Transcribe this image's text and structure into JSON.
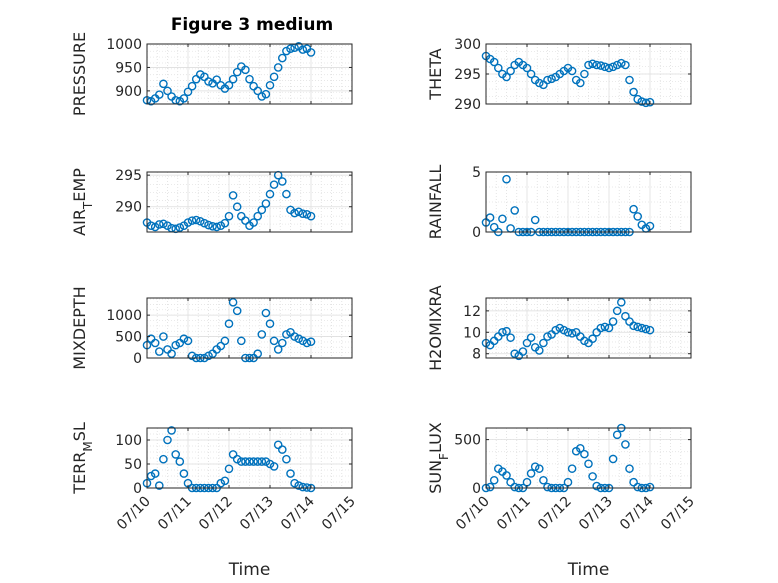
{
  "figure": {
    "title": "Figure 3 medium",
    "marker_color": "#0072BD",
    "x_tick_labels": [
      "07/10",
      "07/11",
      "07/12",
      "07/13",
      "07/14",
      "07/15"
    ],
    "x_label": "Time"
  },
  "chart_data": [
    {
      "type": "scatter",
      "ylabel": "PRESSURE",
      "title": "Figure 3 medium",
      "xlim": [
        0,
        5
      ],
      "ylim": [
        872,
        1000
      ],
      "yticks": [
        900,
        950,
        1000
      ],
      "grid": true,
      "series": [
        {
          "x": [
            0.0,
            0.1,
            0.2,
            0.3,
            0.4,
            0.5,
            0.6,
            0.7,
            0.8,
            0.9,
            1.0,
            1.1,
            1.2,
            1.3,
            1.4,
            1.5,
            1.6,
            1.7,
            1.8,
            1.9,
            2.0,
            2.1,
            2.2,
            2.3,
            2.4,
            2.5,
            2.6,
            2.7,
            2.8,
            2.9,
            3.0,
            3.1,
            3.2,
            3.3,
            3.4,
            3.5,
            3.6,
            3.7,
            3.8,
            3.9,
            4.0
          ],
          "values": [
            880,
            878,
            884,
            892,
            915,
            900,
            888,
            880,
            878,
            884,
            898,
            910,
            925,
            935,
            930,
            920,
            916,
            924,
            912,
            905,
            912,
            925,
            940,
            952,
            945,
            925,
            910,
            900,
            888,
            893,
            912,
            930,
            950,
            970,
            985,
            990,
            992,
            995,
            988,
            990,
            982
          ]
        }
      ]
    },
    {
      "type": "scatter",
      "ylabel": "THETA",
      "xlim": [
        0,
        5
      ],
      "ylim": [
        290,
        300
      ],
      "yticks": [
        290,
        295,
        300
      ],
      "grid": true,
      "series": [
        {
          "x": [
            0.0,
            0.1,
            0.2,
            0.3,
            0.4,
            0.5,
            0.6,
            0.7,
            0.8,
            0.9,
            1.0,
            1.1,
            1.2,
            1.3,
            1.4,
            1.5,
            1.6,
            1.7,
            1.8,
            1.9,
            2.0,
            2.1,
            2.2,
            2.3,
            2.4,
            2.5,
            2.6,
            2.7,
            2.8,
            2.9,
            3.0,
            3.1,
            3.2,
            3.3,
            3.4,
            3.5,
            3.6,
            3.7,
            3.8,
            3.9,
            4.0
          ],
          "values": [
            298.0,
            297.5,
            297.0,
            296.0,
            295.0,
            294.5,
            295.5,
            296.5,
            297.0,
            296.5,
            296.0,
            295.0,
            294.0,
            293.5,
            293.2,
            294.0,
            294.2,
            294.5,
            295.0,
            295.5,
            296.0,
            295.5,
            294.0,
            293.5,
            295.0,
            296.5,
            296.7,
            296.5,
            296.4,
            296.2,
            296.0,
            296.2,
            296.5,
            296.8,
            296.5,
            294.0,
            292.0,
            290.8,
            290.4,
            290.2,
            290.3
          ]
        }
      ]
    },
    {
      "type": "scatter",
      "ylabel": "AIR_TEMP",
      "xlim": [
        0,
        5
      ],
      "ylim": [
        286,
        295.5
      ],
      "yticks": [
        290,
        295
      ],
      "grid": true,
      "series": [
        {
          "x": [
            0.0,
            0.1,
            0.2,
            0.3,
            0.4,
            0.5,
            0.6,
            0.7,
            0.8,
            0.9,
            1.0,
            1.1,
            1.2,
            1.3,
            1.4,
            1.5,
            1.6,
            1.7,
            1.8,
            1.9,
            2.0,
            2.1,
            2.2,
            2.3,
            2.4,
            2.5,
            2.6,
            2.7,
            2.8,
            2.9,
            3.0,
            3.1,
            3.2,
            3.3,
            3.4,
            3.5,
            3.6,
            3.7,
            3.8,
            3.9,
            4.0
          ],
          "values": [
            287.5,
            287.0,
            286.8,
            287.2,
            287.3,
            287.0,
            286.6,
            286.5,
            286.7,
            287.0,
            287.5,
            287.8,
            287.9,
            287.7,
            287.4,
            287.1,
            286.9,
            286.8,
            287.0,
            287.4,
            288.5,
            291.8,
            290.0,
            288.5,
            287.8,
            287.0,
            287.5,
            288.5,
            289.5,
            290.5,
            292.0,
            293.5,
            295.0,
            294.0,
            292.0,
            289.5,
            289.0,
            289.2,
            288.9,
            288.8,
            288.5
          ]
        }
      ]
    },
    {
      "type": "scatter",
      "ylabel": "RAINFALL",
      "xlim": [
        0,
        5
      ],
      "ylim": [
        0,
        5
      ],
      "yticks": [
        0,
        5
      ],
      "grid": true,
      "series": [
        {
          "x": [
            0.0,
            0.1,
            0.2,
            0.3,
            0.4,
            0.5,
            0.6,
            0.7,
            0.8,
            0.9,
            1.0,
            1.1,
            1.2,
            1.3,
            1.4,
            1.5,
            1.6,
            1.7,
            1.8,
            1.9,
            2.0,
            2.1,
            2.2,
            2.3,
            2.4,
            2.5,
            2.6,
            2.7,
            2.8,
            2.9,
            3.0,
            3.1,
            3.2,
            3.3,
            3.4,
            3.5,
            3.6,
            3.7,
            3.8,
            3.9,
            4.0
          ],
          "values": [
            0.8,
            1.2,
            0.4,
            0.0,
            1.1,
            4.4,
            0.3,
            1.8,
            0.0,
            0.0,
            0.0,
            0.0,
            1.0,
            0.0,
            0.0,
            0.0,
            0.0,
            0.0,
            0.0,
            0.0,
            0.0,
            0.0,
            0.0,
            0.0,
            0.0,
            0.0,
            0.0,
            0.0,
            0.0,
            0.0,
            0.0,
            0.0,
            0.0,
            0.0,
            0.0,
            0.0,
            1.9,
            1.3,
            0.6,
            0.3,
            0.5
          ]
        }
      ]
    },
    {
      "type": "scatter",
      "ylabel": "MIXDEPTH",
      "xlim": [
        0,
        5
      ],
      "ylim": [
        0,
        1400
      ],
      "yticks": [
        0,
        500,
        1000
      ],
      "grid": true,
      "series": [
        {
          "x": [
            0.0,
            0.1,
            0.2,
            0.3,
            0.4,
            0.5,
            0.6,
            0.7,
            0.8,
            0.9,
            1.0,
            1.1,
            1.2,
            1.3,
            1.4,
            1.5,
            1.6,
            1.7,
            1.8,
            1.9,
            2.0,
            2.1,
            2.2,
            2.3,
            2.4,
            2.5,
            2.6,
            2.7,
            2.8,
            2.9,
            3.0,
            3.1,
            3.2,
            3.3,
            3.4,
            3.5,
            3.6,
            3.7,
            3.8,
            3.9,
            4.0
          ],
          "values": [
            300,
            450,
            350,
            150,
            500,
            200,
            100,
            300,
            350,
            450,
            400,
            50,
            0,
            0,
            0,
            50,
            100,
            200,
            280,
            400,
            800,
            1300,
            1100,
            400,
            0,
            0,
            0,
            100,
            550,
            1050,
            800,
            400,
            200,
            350,
            550,
            600,
            500,
            450,
            400,
            350,
            380
          ]
        }
      ]
    },
    {
      "type": "scatter",
      "ylabel": "H2OMIXRA",
      "xlim": [
        0,
        5
      ],
      "ylim": [
        7.6,
        13.2
      ],
      "yticks": [
        8,
        10,
        12
      ],
      "grid": true,
      "series": [
        {
          "x": [
            0.0,
            0.1,
            0.2,
            0.3,
            0.4,
            0.5,
            0.6,
            0.7,
            0.8,
            0.9,
            1.0,
            1.1,
            1.2,
            1.3,
            1.4,
            1.5,
            1.6,
            1.7,
            1.8,
            1.9,
            2.0,
            2.1,
            2.2,
            2.3,
            2.4,
            2.5,
            2.6,
            2.7,
            2.8,
            2.9,
            3.0,
            3.1,
            3.2,
            3.3,
            3.4,
            3.5,
            3.6,
            3.7,
            3.8,
            3.9,
            4.0
          ],
          "values": [
            9.0,
            8.8,
            9.2,
            9.6,
            10.0,
            10.1,
            9.5,
            8.0,
            7.8,
            8.2,
            9.0,
            9.5,
            8.6,
            8.3,
            9.0,
            9.6,
            9.8,
            10.2,
            10.4,
            10.2,
            10.0,
            9.9,
            10.0,
            9.6,
            9.2,
            9.0,
            9.4,
            10.0,
            10.4,
            10.5,
            10.4,
            11.0,
            12.0,
            12.8,
            11.5,
            11.0,
            10.6,
            10.5,
            10.4,
            10.3,
            10.2
          ]
        }
      ]
    },
    {
      "type": "scatter",
      "ylabel": "TERR_MSL",
      "xlim": [
        0,
        5
      ],
      "ylim": [
        0,
        125
      ],
      "yticks": [
        0,
        50,
        100
      ],
      "grid": true,
      "series": [
        {
          "x": [
            0.0,
            0.1,
            0.2,
            0.3,
            0.4,
            0.5,
            0.6,
            0.7,
            0.8,
            0.9,
            1.0,
            1.1,
            1.2,
            1.3,
            1.4,
            1.5,
            1.6,
            1.7,
            1.8,
            1.9,
            2.0,
            2.1,
            2.2,
            2.3,
            2.4,
            2.5,
            2.6,
            2.7,
            2.8,
            2.9,
            3.0,
            3.1,
            3.2,
            3.3,
            3.4,
            3.5,
            3.6,
            3.7,
            3.8,
            3.9,
            4.0
          ],
          "values": [
            10,
            25,
            30,
            5,
            60,
            100,
            120,
            70,
            55,
            30,
            10,
            0,
            0,
            0,
            0,
            0,
            0,
            0,
            10,
            15,
            40,
            70,
            60,
            55,
            55,
            55,
            55,
            55,
            55,
            55,
            50,
            45,
            90,
            80,
            60,
            30,
            10,
            5,
            2,
            1,
            0
          ]
        }
      ]
    },
    {
      "type": "scatter",
      "ylabel": "SUN_FLUX",
      "xlim": [
        0,
        5
      ],
      "ylim": [
        0,
        620
      ],
      "yticks": [
        0,
        500
      ],
      "grid": true,
      "series": [
        {
          "x": [
            0.0,
            0.1,
            0.2,
            0.3,
            0.4,
            0.5,
            0.6,
            0.7,
            0.8,
            0.9,
            1.0,
            1.1,
            1.2,
            1.3,
            1.4,
            1.5,
            1.6,
            1.7,
            1.8,
            1.9,
            2.0,
            2.1,
            2.2,
            2.3,
            2.4,
            2.5,
            2.6,
            2.7,
            2.8,
            2.9,
            3.0,
            3.1,
            3.2,
            3.3,
            3.4,
            3.5,
            3.6,
            3.7,
            3.8,
            3.9,
            4.0
          ],
          "values": [
            0,
            10,
            80,
            200,
            170,
            130,
            60,
            10,
            0,
            0,
            60,
            150,
            220,
            200,
            80,
            10,
            0,
            0,
            0,
            0,
            60,
            200,
            380,
            410,
            350,
            250,
            120,
            20,
            0,
            0,
            0,
            300,
            550,
            620,
            450,
            200,
            60,
            10,
            0,
            0,
            10
          ]
        }
      ]
    }
  ]
}
